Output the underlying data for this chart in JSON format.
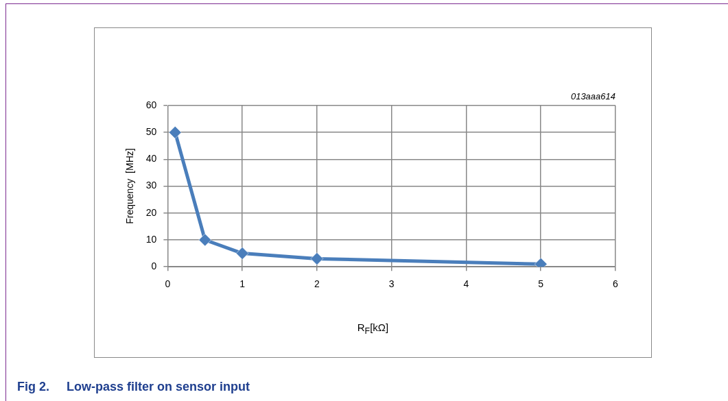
{
  "chart_data": {
    "type": "line",
    "title": "Fig 2.     Low-pass filter on sensor input",
    "xlabel": "R$_{F}$[kΩ]",
    "ylabel": "Frequency  [MHz]",
    "annotations": [
      "013aaa614"
    ],
    "x": [
      0.1,
      0.5,
      1,
      2,
      5
    ],
    "series": [
      {
        "color": "#4a7ebb",
        "values": [
          50,
          10,
          5,
          3,
          1
        ]
      }
    ],
    "xlim": [
      0,
      6
    ],
    "xticks": [
      0,
      1,
      2,
      3,
      4,
      5,
      6
    ],
    "ylim": [
      0,
      60
    ],
    "yticks": [
      0,
      10,
      20,
      30,
      40,
      50,
      60
    ],
    "grid": true,
    "legend": false,
    "marker": "diamond",
    "line_style": "solid"
  }
}
